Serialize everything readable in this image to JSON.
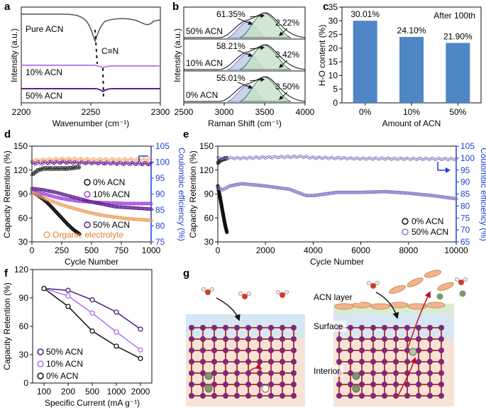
{
  "panels": {
    "a": {
      "letter": "a",
      "xlabel": "Wavenumber (cm⁻¹)",
      "ylabel": "Intensity (a.u.)",
      "xticks": [
        "2200",
        "2250",
        "2300"
      ],
      "bond_label": "C≡N",
      "traces": [
        {
          "label": "Pure ACN",
          "color": "#555555"
        },
        {
          "label": "10% ACN",
          "color": "#c07ff0"
        },
        {
          "label": "50% ACN",
          "color": "#5a1f8a"
        }
      ]
    },
    "b": {
      "letter": "b",
      "xlabel": "Raman Shift (cm⁻¹)",
      "ylabel": "Intensity (a.u.)",
      "xticks": [
        "2500",
        "3000",
        "3500",
        "4000"
      ],
      "rows": [
        {
          "label": "50% ACN",
          "main_pct": "61.35%",
          "small_pct": "2.22%"
        },
        {
          "label": "10% ACN",
          "main_pct": "58.21%",
          "small_pct": "3.42%"
        },
        {
          "label": "0% ACN",
          "main_pct": "55.01%",
          "small_pct": "3.50%"
        }
      ]
    },
    "c": {
      "letter": "c",
      "annotation": "After 100th"
    },
    "d": {
      "letter": "d",
      "xlabel": "Cycle Number",
      "ylabel": "Capacity Retention (%)",
      "y2label": "Coulombic efficiency (%)",
      "legend": [
        {
          "label": "0%  ACN",
          "color": "#111111"
        },
        {
          "label": "10% ACN",
          "color": "#a040e0"
        },
        {
          "label": "50% ACN",
          "color": "#5a1f8a"
        },
        {
          "label": "Organic electrolyte",
          "color": "#f0a060"
        }
      ]
    },
    "e": {
      "letter": "e",
      "xlabel": "Cycle Number",
      "ylabel": "Capacity Retention (%)",
      "y2label": "Coulombic efficiency (%)",
      "legend": [
        {
          "label": "0% ACN",
          "color": "#111111"
        },
        {
          "label": "50% ACN",
          "color": "#8878c8"
        }
      ]
    },
    "f": {
      "letter": "f",
      "legend": [
        {
          "label": "50% ACN",
          "color": "#4a1a7a"
        },
        {
          "label": "10% ACN",
          "color": "#b070f0"
        },
        {
          "label": "0% ACN",
          "color": "#111111"
        }
      ]
    },
    "g": {
      "letter": "g",
      "labels": {
        "acn_layer": "ACN layer",
        "surface": "Surface",
        "interior": "Interior"
      }
    }
  },
  "colors": {
    "bar": "#4f86c6",
    "axis_blue": "#1f3fd8",
    "surface_band": "#d6e6f2",
    "interior_band": "#f7e3d6",
    "acn_band": "#d9ecd0",
    "lattice_purple": "#7a2a7a",
    "lattice_red": "#c0392b",
    "zn_green": "#7a9a6a"
  },
  "chart_data": [
    {
      "panel": "c",
      "type": "bar",
      "title": "",
      "xlabel": "Amount of ACN",
      "ylabel": "H-O content (%)",
      "categories": [
        "0%",
        "10%",
        "50%"
      ],
      "values": [
        30.01,
        24.1,
        21.9
      ],
      "value_labels": [
        "30.01%",
        "24.10%",
        "21.90%"
      ],
      "ylim": [
        0,
        35
      ],
      "yticks": [
        "0",
        "5",
        "10",
        "15",
        "20",
        "25",
        "30",
        "35"
      ]
    },
    {
      "panel": "d",
      "type": "scatter",
      "xlabel": "Cycle Number",
      "ylabel": "Capacity Retention (%)",
      "y2label": "Coulombic efficiency (%)",
      "xlim": [
        0,
        1000
      ],
      "ylim": [
        30,
        150
      ],
      "y2lim": [
        75,
        105
      ],
      "xticks": [
        "0",
        "250",
        "500",
        "750",
        "1000"
      ],
      "yticks": [
        "30",
        "60",
        "90",
        "120",
        "150"
      ],
      "y2ticks": [
        "75",
        "80",
        "85",
        "90",
        "95",
        "100",
        "105"
      ],
      "capacity_series": [
        {
          "name": "0%  ACN",
          "x": [
            0,
            50,
            100,
            150,
            200,
            250,
            300,
            350,
            380,
            400
          ],
          "y": [
            93,
            88,
            83,
            76,
            68,
            60,
            52,
            45,
            42,
            40
          ]
        },
        {
          "name": "10% ACN",
          "x": [
            0,
            100,
            200,
            300,
            400,
            500,
            600,
            700,
            800,
            900,
            1000
          ],
          "y": [
            93,
            90,
            86,
            83,
            81,
            80,
            79,
            78.5,
            78,
            78,
            78
          ]
        },
        {
          "name": "50% ACN",
          "x": [
            0,
            100,
            200,
            300,
            400,
            500,
            600,
            700,
            800,
            900,
            1000
          ],
          "y": [
            97,
            95,
            92,
            88,
            84,
            80,
            77,
            74,
            73,
            72,
            71
          ]
        },
        {
          "name": "Organic electrolyte",
          "x": [
            0,
            100,
            200,
            300,
            400,
            500,
            600,
            700,
            800,
            900,
            1000
          ],
          "y": [
            92,
            85,
            79,
            74,
            70,
            66,
            63,
            61,
            59,
            58,
            57
          ]
        }
      ],
      "ce_series": [
        {
          "name": "0%  ACN CE",
          "x": [
            0,
            50,
            100,
            200,
            300,
            400
          ],
          "y": [
            96,
            97.5,
            98,
            98,
            98,
            98.5
          ]
        },
        {
          "name": "10% ACN CE",
          "x": [
            0,
            250,
            500,
            750,
            1000
          ],
          "y": [
            99.5,
            100,
            99.8,
            99.5,
            99.5
          ]
        },
        {
          "name": "50% ACN CE",
          "x": [
            0,
            250,
            500,
            750,
            1000
          ],
          "y": [
            100,
            100,
            99.8,
            99.7,
            99.5
          ]
        },
        {
          "name": "Organic electrolyte CE",
          "x": [
            0,
            250,
            500,
            750,
            1000
          ],
          "y": [
            100.5,
            101,
            100.8,
            100.8,
            100.8
          ]
        }
      ]
    },
    {
      "panel": "e",
      "type": "scatter",
      "xlabel": "Cycle Number",
      "ylabel": "Capacity Retention (%)",
      "y2label": "Coulombic efficiency (%)",
      "xlim": [
        0,
        10000
      ],
      "ylim": [
        30,
        150
      ],
      "y2lim": [
        65,
        105
      ],
      "xticks": [
        "0",
        "2000",
        "4000",
        "6000",
        "8000",
        "10000"
      ],
      "yticks": [
        "30",
        "60",
        "90",
        "120",
        "150"
      ],
      "y2ticks": [
        "65",
        "70",
        "75",
        "80",
        "85",
        "90",
        "95",
        "100",
        "105"
      ],
      "capacity_series": [
        {
          "name": "0% ACN",
          "x": [
            0,
            100,
            200,
            300,
            380
          ],
          "y": [
            100,
            85,
            68,
            52,
            42
          ]
        },
        {
          "name": "50% ACN",
          "x": [
            0,
            200,
            500,
            1000,
            2000,
            3000,
            3700,
            4000,
            5000,
            6000,
            7000,
            8000,
            9000,
            10000
          ],
          "y": [
            98,
            95,
            100,
            103,
            100,
            96,
            88,
            88,
            92,
            92,
            93,
            91,
            88,
            84
          ]
        }
      ],
      "ce_series": [
        {
          "name": "0% ACN CE",
          "x": [
            0,
            100,
            200,
            300,
            380
          ],
          "y": [
            98,
            99,
            99.5,
            99.8,
            100
          ]
        },
        {
          "name": "50% ACN CE",
          "x": [
            0,
            1000,
            2000,
            3000,
            3500,
            4000,
            5000,
            6000,
            7000,
            8000,
            9000,
            10000
          ],
          "y": [
            100,
            100,
            100.3,
            100.5,
            100.6,
            100.2,
            100,
            99.8,
            99.8,
            99.7,
            99.7,
            99.6
          ]
        }
      ]
    },
    {
      "panel": "f",
      "type": "line",
      "xlabel": "Specific Current (mA g⁻¹)",
      "ylabel": "Capacity Retention (%)",
      "categories": [
        "100",
        "200",
        "500",
        "1000",
        "2000"
      ],
      "ylim": [
        0,
        120
      ],
      "yticks": [
        "0",
        "30",
        "60",
        "90",
        "120"
      ],
      "series": [
        {
          "name": "50% ACN",
          "values": [
            100,
            98,
            88,
            75,
            57
          ]
        },
        {
          "name": "10% ACN",
          "values": [
            100,
            92,
            74,
            54,
            35
          ]
        },
        {
          "name": "0% ACN",
          "values": [
            100,
            81,
            55,
            39,
            26
          ]
        }
      ]
    }
  ]
}
